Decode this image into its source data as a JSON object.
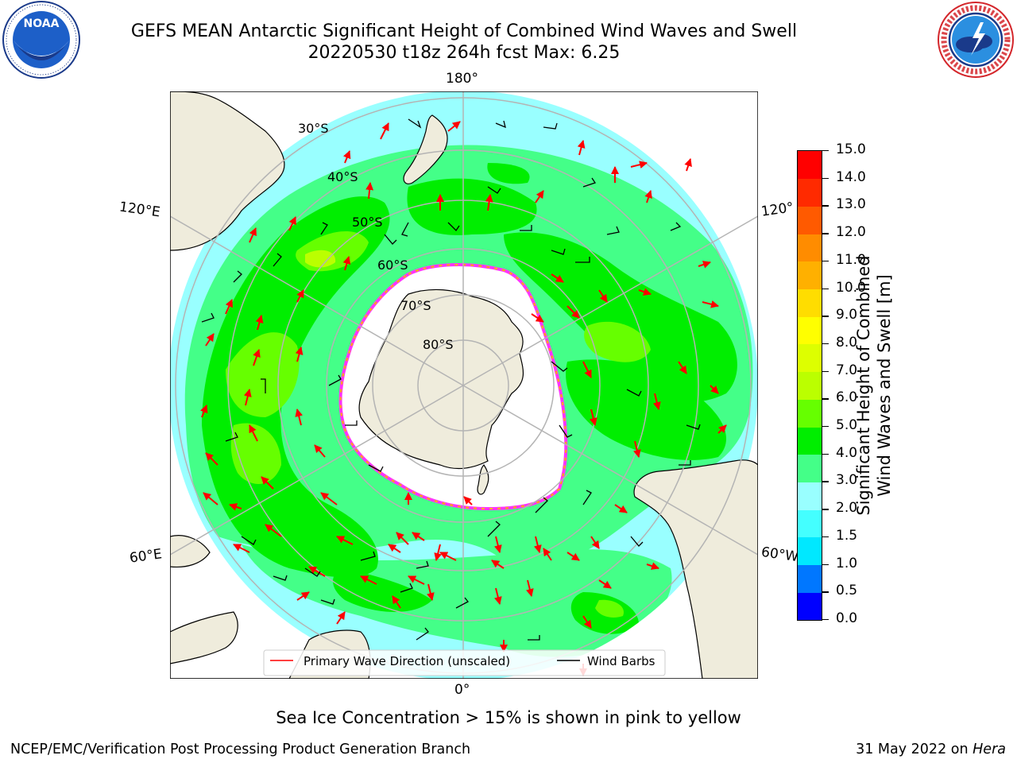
{
  "header": {
    "title_line1": "GEFS MEAN Antarctic Significant Height of Combined Wind Waves and Swell",
    "title_line2": "20220530 t18z 264h fcst   Max: 6.25"
  },
  "logos": {
    "left": {
      "icon": "noaa-logo-icon",
      "text": "NOAA"
    },
    "right": {
      "icon": "nws-logo-icon"
    }
  },
  "map": {
    "projection": "south-polar-stereographic",
    "lon_labels": {
      "top": "180°",
      "bottom": "0°",
      "left_upper": "120°E",
      "left_lower": "60°E",
      "right_upper": "120°",
      "right_lower": "60°W"
    },
    "lat_labels": [
      "30°S",
      "40°S",
      "50°S",
      "60°S",
      "70°S",
      "80°S"
    ],
    "colors": {
      "land": "#efecdc",
      "sea_ice": "#ffffff",
      "graticule": "#b4b4b4",
      "wave_arrow": "#ff0000",
      "wind_barb": "#000000",
      "ice_edge_pink": "#ff33ff",
      "ice_edge_yellow": "#ffb000"
    },
    "legend": {
      "primary_wave": "Primary Wave Direction (unscaled)",
      "wind_barbs": "Wind Barbs"
    }
  },
  "colorbar": {
    "title_line1": "Significant Height of Combined",
    "title_line2": "Wind Waves and Swell [m]",
    "levels": [
      0.0,
      0.5,
      1.0,
      1.5,
      2.0,
      3.0,
      4.0,
      5.0,
      6.0,
      7.0,
      8.0,
      9.0,
      10.0,
      11.0,
      12.0,
      13.0,
      14.0,
      15.0
    ],
    "tick_labels": [
      "0.0",
      "0.5",
      "1.0",
      "1.5",
      "2.0",
      "3.0",
      "4.0",
      "5.0",
      "6.0",
      "7.0",
      "8.0",
      "9.0",
      "10.0",
      "11.0",
      "12.0",
      "13.0",
      "14.0",
      "15.0"
    ],
    "colors": [
      "#0000ff",
      "#0077ff",
      "#00e8ff",
      "#44ffff",
      "#99ffff",
      "#44ff88",
      "#00ee00",
      "#66ff00",
      "#bbff00",
      "#ddff00",
      "#ffff00",
      "#ffdd00",
      "#ffb000",
      "#ff8c00",
      "#ff5a00",
      "#ff2a00",
      "#ff0000"
    ]
  },
  "subtitle": "Sea Ice Concentration > 15% is shown in pink to yellow",
  "footer": {
    "left": "NCEP/EMC/Verification Post Processing Product Generation Branch",
    "right_prefix": "31 May 2022 on ",
    "right_host": "Hera"
  }
}
